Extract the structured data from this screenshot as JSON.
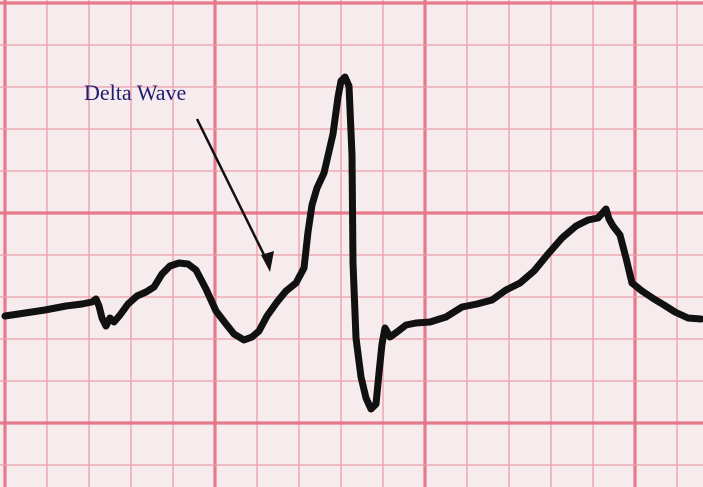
{
  "image": {
    "annotation_label": "Delta Wave",
    "annotation_color": "#1e1d71",
    "paper_color": "#f6e9ea",
    "grid_color": "#e57487",
    "trace_color": "#111111"
  }
}
